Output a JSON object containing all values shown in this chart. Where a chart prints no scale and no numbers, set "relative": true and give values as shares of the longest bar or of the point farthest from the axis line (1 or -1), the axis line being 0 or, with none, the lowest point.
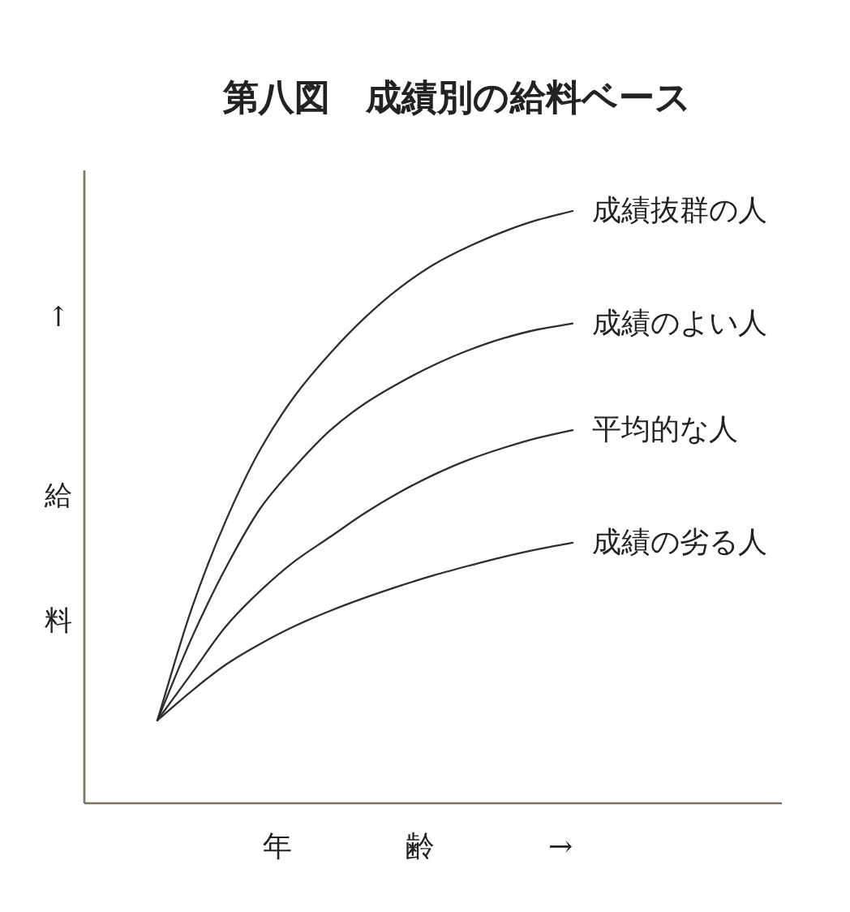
{
  "chart_data": {
    "type": "line",
    "title": "第八図　成績別の給料ベース",
    "xlabel": "年　齢　→",
    "ylabel": "↑　給　料",
    "relative": true,
    "categories": [
      null,
      null,
      null,
      null,
      null,
      null,
      null,
      null,
      null,
      null,
      null,
      null,
      null
    ],
    "series": [
      {
        "name": "成績抜群の人",
        "color": "#2e2e2e",
        "values": [
          0.14,
          0.33,
          0.48,
          0.6,
          0.69,
          0.76,
          0.82,
          0.87,
          0.91,
          0.94,
          0.965,
          0.985,
          1.0
        ]
      },
      {
        "name": "成績のよい人",
        "color": "#2e2e2e",
        "values": [
          0.14,
          0.28,
          0.4,
          0.5,
          0.57,
          0.63,
          0.675,
          0.71,
          0.74,
          0.765,
          0.785,
          0.8,
          0.81
        ]
      },
      {
        "name": "平均的な人",
        "color": "#2e2e2e",
        "values": [
          0.14,
          0.22,
          0.3,
          0.36,
          0.41,
          0.45,
          0.49,
          0.525,
          0.555,
          0.58,
          0.6,
          0.617,
          0.63
        ]
      },
      {
        "name": "成績の劣る人",
        "color": "#2e2e2e",
        "values": [
          0.14,
          0.19,
          0.235,
          0.27,
          0.3,
          0.325,
          0.347,
          0.367,
          0.385,
          0.401,
          0.416,
          0.429,
          0.44
        ]
      }
    ]
  }
}
